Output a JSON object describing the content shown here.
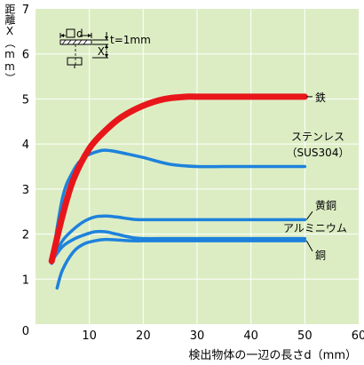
{
  "chart_data": {
    "type": "line",
    "ylabel": "距離X（mm）",
    "xlabel": "検出物体の一辺の長さd（mm）",
    "xlim": [
      0,
      60
    ],
    "ylim": [
      0,
      7
    ],
    "xticks": [
      0,
      10,
      20,
      30,
      40,
      50,
      60
    ],
    "yticks": [
      1,
      2,
      3,
      4,
      5,
      6,
      7
    ],
    "grid": true,
    "colors": {
      "iron": "#e8161b",
      "others": "#1e82dc",
      "plot_bg": "#dcedc4",
      "grid": "#ffffff"
    },
    "series": [
      {
        "name": "鉄",
        "x": [
          3,
          5,
          7,
          10,
          13,
          16,
          20,
          24,
          28,
          30,
          35,
          40,
          45,
          50
        ],
        "y": [
          1.4,
          2.4,
          3.2,
          3.9,
          4.3,
          4.6,
          4.85,
          5.0,
          5.05,
          5.05,
          5.05,
          5.05,
          5.05,
          5.05
        ]
      },
      {
        "name": "ステンレス（SUS304）",
        "x": [
          3,
          5,
          7,
          9,
          12,
          14,
          17,
          20,
          25,
          30,
          35,
          40,
          45,
          50
        ],
        "y": [
          1.35,
          2.8,
          3.4,
          3.7,
          3.85,
          3.85,
          3.78,
          3.7,
          3.55,
          3.5,
          3.5,
          3.5,
          3.5,
          3.5
        ]
      },
      {
        "name": "黄銅",
        "x": [
          3,
          5,
          7,
          9,
          11,
          13,
          15,
          18,
          20,
          25,
          30,
          40,
          50
        ],
        "y": [
          1.4,
          1.85,
          2.1,
          2.28,
          2.38,
          2.4,
          2.38,
          2.33,
          2.32,
          2.32,
          2.32,
          2.32,
          2.32
        ]
      },
      {
        "name": "アルミニウム",
        "x": [
          3,
          5,
          7,
          9,
          11,
          13,
          15,
          18,
          20,
          25,
          30,
          40,
          50
        ],
        "y": [
          1.4,
          1.72,
          1.88,
          1.98,
          2.05,
          2.05,
          2.0,
          1.92,
          1.9,
          1.9,
          1.9,
          1.9,
          1.9
        ]
      },
      {
        "name": "銅",
        "x": [
          4,
          5,
          7,
          9,
          11,
          13,
          15,
          18,
          20,
          25,
          30,
          40,
          50
        ],
        "y": [
          0.8,
          1.2,
          1.6,
          1.78,
          1.85,
          1.88,
          1.87,
          1.85,
          1.85,
          1.85,
          1.85,
          1.85,
          1.85
        ]
      }
    ],
    "annotations": {
      "d_label": "d",
      "x_label": "X",
      "t_label": "t=1mm",
      "stainless_line1": "ステンレス",
      "stainless_line2": "（SUS304）"
    }
  }
}
